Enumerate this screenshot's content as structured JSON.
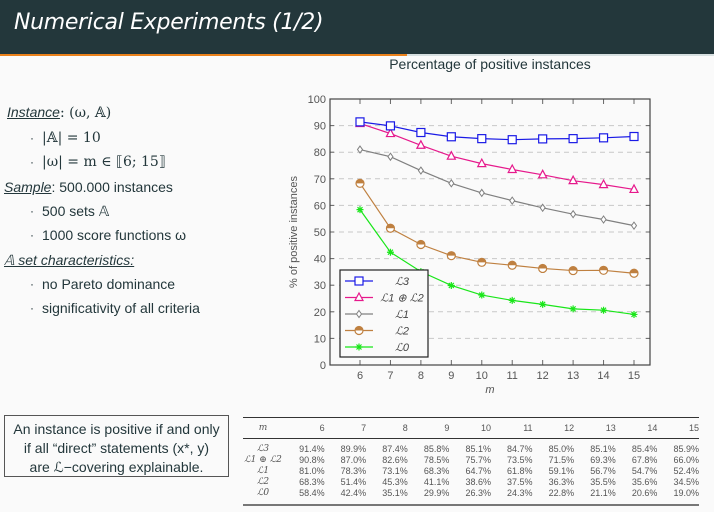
{
  "header": {
    "title": "Numerical Experiments (1/2)",
    "progress": 0.57,
    "accent_color": "#eb811b",
    "bg_color": "#23373b"
  },
  "left": {
    "instance_label": "Instance",
    "instance_value": ": (ω, 𝔸)",
    "instance_items": [
      "|𝔸| = 10",
      "|ω| = m ∈ ⟦6; 15⟧"
    ],
    "sample_label": "Sample",
    "sample_value": ": 500.000 instances",
    "sample_items": [
      "500 sets 𝔸",
      "1000 score functions ω"
    ],
    "set_label": "𝔸 set characteristics:",
    "set_items": [
      "no Pareto dominance",
      "significativity of all criteria"
    ],
    "bullet": "·"
  },
  "note": {
    "line1": "An instance is positive if and only",
    "line2": "if all “direct” statements (x*, y)",
    "line3": "are ℒ−covering explainable."
  },
  "chart_data": {
    "type": "line",
    "title": "Percentage of positive instances",
    "xlabel": "m",
    "ylabel": "% of positive instances",
    "x": [
      6,
      7,
      8,
      9,
      10,
      11,
      12,
      13,
      14,
      15
    ],
    "xlim": [
      5,
      15.5
    ],
    "ylim": [
      0,
      100
    ],
    "yticks": [
      0,
      10,
      20,
      30,
      40,
      50,
      60,
      70,
      80,
      90,
      100
    ],
    "grid": "horizontal-dashed",
    "legend_position": "bottom-left",
    "series": [
      {
        "name": "ℒ3",
        "color": "#1a1ae6",
        "marker": "square",
        "values": [
          91.4,
          89.9,
          87.4,
          85.8,
          85.1,
          84.7,
          85.0,
          85.1,
          85.4,
          85.9
        ]
      },
      {
        "name": "ℒ1 ⊕ ℒ2",
        "color": "#e6198c",
        "marker": "triangle",
        "values": [
          90.8,
          87.0,
          82.6,
          78.5,
          75.7,
          73.5,
          71.5,
          69.3,
          67.8,
          66.0
        ]
      },
      {
        "name": "ℒ1",
        "color": "#808080",
        "marker": "diamond",
        "values": [
          81.0,
          78.3,
          73.1,
          68.3,
          64.7,
          61.8,
          59.1,
          56.7,
          54.7,
          52.4
        ]
      },
      {
        "name": "ℒ2",
        "color": "#bf8040",
        "marker": "halfcircle",
        "values": [
          68.3,
          51.4,
          45.3,
          41.1,
          38.6,
          37.5,
          36.3,
          35.5,
          35.6,
          34.5
        ]
      },
      {
        "name": "ℒ0",
        "color": "#19e619",
        "marker": "star",
        "values": [
          58.4,
          42.4,
          35.1,
          29.9,
          26.3,
          24.3,
          22.8,
          21.1,
          20.6,
          19.0
        ]
      }
    ]
  },
  "table": {
    "header": [
      "m",
      "6",
      "7",
      "8",
      "9",
      "10",
      "11",
      "12",
      "13",
      "14",
      "15"
    ],
    "rows": [
      [
        "ℒ3",
        "91.4%",
        "89.9%",
        "87.4%",
        "85.8%",
        "85.1%",
        "84.7%",
        "85.0%",
        "85.1%",
        "85.4%",
        "85.9%"
      ],
      [
        "ℒ1 ⊕ ℒ2",
        "90.8%",
        "87.0%",
        "82.6%",
        "78.5%",
        "75.7%",
        "73.5%",
        "71.5%",
        "69.3%",
        "67.8%",
        "66.0%"
      ],
      [
        "ℒ1",
        "81.0%",
        "78.3%",
        "73.1%",
        "68.3%",
        "64.7%",
        "61.8%",
        "59.1%",
        "56.7%",
        "54.7%",
        "52.4%"
      ],
      [
        "ℒ2",
        "68.3%",
        "51.4%",
        "45.3%",
        "41.1%",
        "38.6%",
        "37.5%",
        "36.3%",
        "35.5%",
        "35.6%",
        "34.5%"
      ],
      [
        "ℒ0",
        "58.4%",
        "42.4%",
        "35.1%",
        "29.9%",
        "26.3%",
        "24.3%",
        "22.8%",
        "21.1%",
        "20.6%",
        "19.0%"
      ]
    ]
  }
}
